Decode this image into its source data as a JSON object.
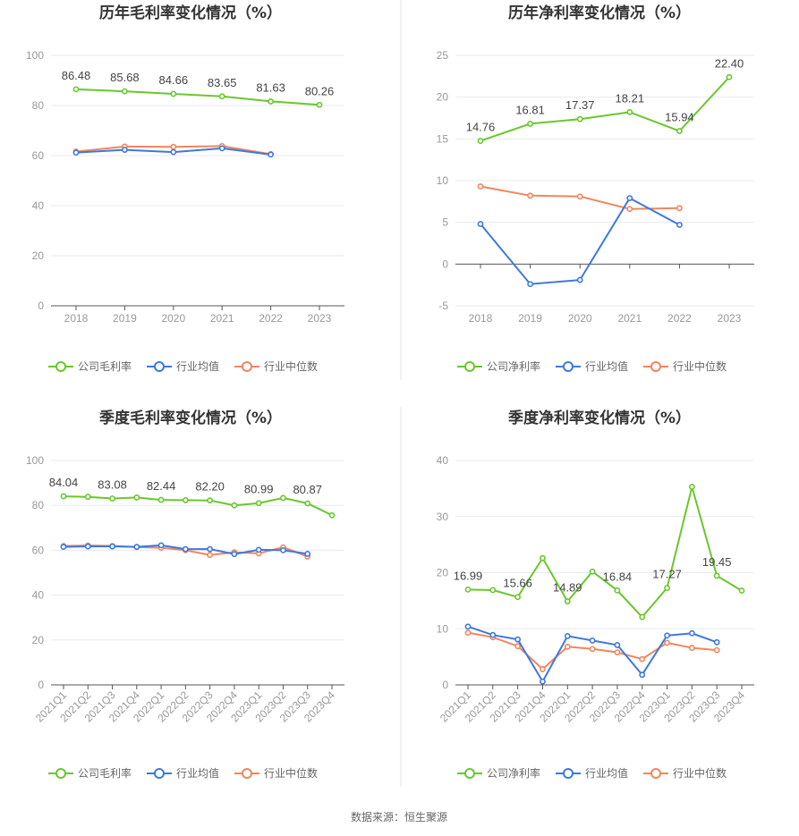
{
  "source": "数据来源：恒生聚源",
  "colors": {
    "company": "#6ac72c",
    "industry_avg": "#3d78e0",
    "industry_median": "#f2855e",
    "grid": "#e8eaf2",
    "axis": "#555555"
  },
  "chart_data": [
    {
      "type": "line",
      "title": "历年毛利率变化情况（%）",
      "categories": [
        "2018",
        "2019",
        "2020",
        "2021",
        "2022",
        "2023"
      ],
      "ylim": [
        0,
        100
      ],
      "yticks": [
        0,
        20,
        40,
        60,
        80,
        100
      ],
      "label_indices": [
        0,
        1,
        2,
        3,
        4,
        5
      ],
      "series": [
        {
          "name": "公司毛利率",
          "color": "#6ac72c",
          "values": [
            86.48,
            85.68,
            84.66,
            83.65,
            81.63,
            80.26
          ]
        },
        {
          "name": "行业均值",
          "color": "#3d78e0",
          "values": [
            61.2,
            62.3,
            61.4,
            62.9,
            60.4,
            null
          ]
        },
        {
          "name": "行业中位数",
          "color": "#f2855e",
          "values": [
            61.6,
            63.6,
            63.5,
            63.8,
            60.6,
            null
          ]
        }
      ]
    },
    {
      "type": "line",
      "title": "历年净利率变化情况（%）",
      "categories": [
        "2018",
        "2019",
        "2020",
        "2021",
        "2022",
        "2023"
      ],
      "ylim": [
        -5,
        25
      ],
      "yticks": [
        -5,
        0,
        5,
        10,
        15,
        20,
        25
      ],
      "label_indices": [
        0,
        1,
        2,
        3,
        4,
        5
      ],
      "series": [
        {
          "name": "公司净利率",
          "color": "#6ac72c",
          "values": [
            14.76,
            16.81,
            17.37,
            18.21,
            15.94,
            22.4
          ]
        },
        {
          "name": "行业均值",
          "color": "#3d78e0",
          "values": [
            4.8,
            -2.4,
            -1.9,
            7.9,
            4.7,
            null
          ]
        },
        {
          "name": "行业中位数",
          "color": "#f2855e",
          "values": [
            9.3,
            8.2,
            8.1,
            6.6,
            6.7,
            null
          ]
        }
      ]
    },
    {
      "type": "line",
      "title": "季度毛利率变化情况（%）",
      "categories": [
        "2021Q1",
        "2021Q2",
        "2021Q3",
        "2021Q4",
        "2022Q1",
        "2022Q2",
        "2022Q3",
        "2022Q4",
        "2023Q1",
        "2023Q2",
        "2023Q3",
        "2023Q4"
      ],
      "ylim": [
        0,
        100
      ],
      "yticks": [
        0,
        20,
        40,
        60,
        80,
        100
      ],
      "label_indices": [
        0,
        2,
        4,
        6,
        8,
        10
      ],
      "series": [
        {
          "name": "公司毛利率",
          "color": "#6ac72c",
          "values": [
            84.04,
            83.8,
            83.08,
            83.5,
            82.44,
            82.3,
            82.2,
            80.0,
            80.99,
            83.3,
            80.87,
            75.6
          ]
        },
        {
          "name": "行业均值",
          "color": "#3d78e0",
          "values": [
            61.5,
            61.7,
            61.7,
            61.5,
            62.2,
            60.5,
            60.5,
            58.3,
            60.2,
            60.0,
            58.4,
            null
          ]
        },
        {
          "name": "行业中位数",
          "color": "#f2855e",
          "values": [
            61.9,
            62.1,
            61.9,
            61.4,
            61.1,
            60.0,
            57.9,
            59.1,
            58.6,
            61.3,
            57.2,
            null
          ]
        }
      ]
    },
    {
      "type": "line",
      "title": "季度净利率变化情况（%）",
      "categories": [
        "2021Q1",
        "2021Q2",
        "2021Q3",
        "2021Q4",
        "2022Q1",
        "2022Q2",
        "2022Q3",
        "2022Q4",
        "2023Q1",
        "2023Q2",
        "2023Q3",
        "2023Q4"
      ],
      "ylim": [
        0,
        40
      ],
      "yticks": [
        0,
        10,
        20,
        30,
        40
      ],
      "label_indices": [
        0,
        2,
        4,
        6,
        8,
        10
      ],
      "series": [
        {
          "name": "公司净利率",
          "color": "#6ac72c",
          "values": [
            16.99,
            16.9,
            15.66,
            22.6,
            14.89,
            20.2,
            16.84,
            12.1,
            17.27,
            35.3,
            19.45,
            16.8
          ]
        },
        {
          "name": "行业均值",
          "color": "#3d78e0",
          "values": [
            10.4,
            8.9,
            8.1,
            0.6,
            8.7,
            7.9,
            7.1,
            1.8,
            8.8,
            9.2,
            7.6,
            null
          ]
        },
        {
          "name": "行业中位数",
          "color": "#f2855e",
          "values": [
            9.3,
            8.5,
            6.9,
            2.8,
            6.8,
            6.4,
            5.8,
            4.6,
            7.5,
            6.6,
            6.2,
            null
          ]
        }
      ]
    }
  ]
}
